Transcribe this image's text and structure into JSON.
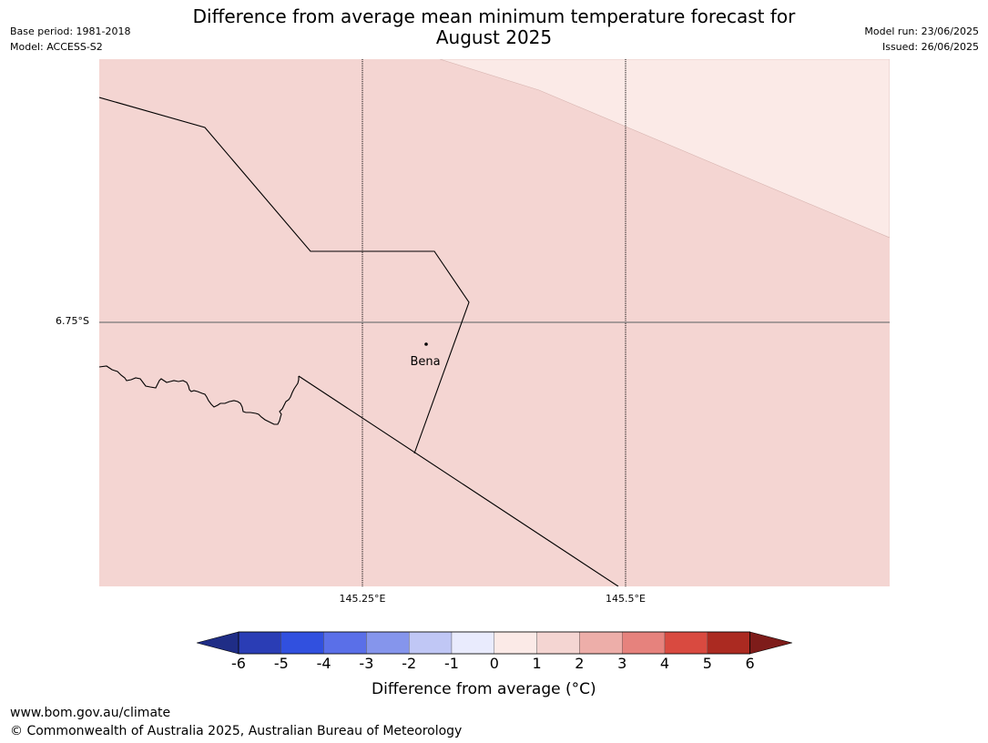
{
  "header": {
    "title_line1": "Difference from average mean minimum temperature forecast for",
    "title_line2": "August 2025",
    "base_period": "Base period: 1981-2018",
    "model": "Model: ACCESS-S2",
    "model_run": "Model run: 23/06/2025",
    "issued": "Issued: 26/06/2025"
  },
  "map": {
    "place": "Bena",
    "lat_label": "6.75°S",
    "lon_labels": [
      "145.25°E",
      "145.5°E"
    ],
    "fill_colors": {
      "bin_1_to_2": "#f4d5d2",
      "bin_0_to_1": "#fbeae7"
    }
  },
  "legend": {
    "ticks": [
      "-6",
      "-5",
      "-4",
      "-3",
      "-2",
      "-1",
      "0",
      "1",
      "2",
      "3",
      "4",
      "5",
      "6"
    ],
    "colors": [
      "#1f2d86",
      "#2a3db5",
      "#3150df",
      "#5a6fe8",
      "#8595ec",
      "#c0c7f5",
      "#e9ebfd",
      "#fbeae7",
      "#f4d5d2",
      "#edaea9",
      "#e6827d",
      "#d94a40",
      "#ab2a21",
      "#7e1c1a"
    ],
    "label": "Difference from average (°C)"
  },
  "footer": {
    "url": "www.bom.gov.au/climate",
    "copyright": "© Commonwealth of Australia 2025, Australian Bureau of Meteorology"
  }
}
